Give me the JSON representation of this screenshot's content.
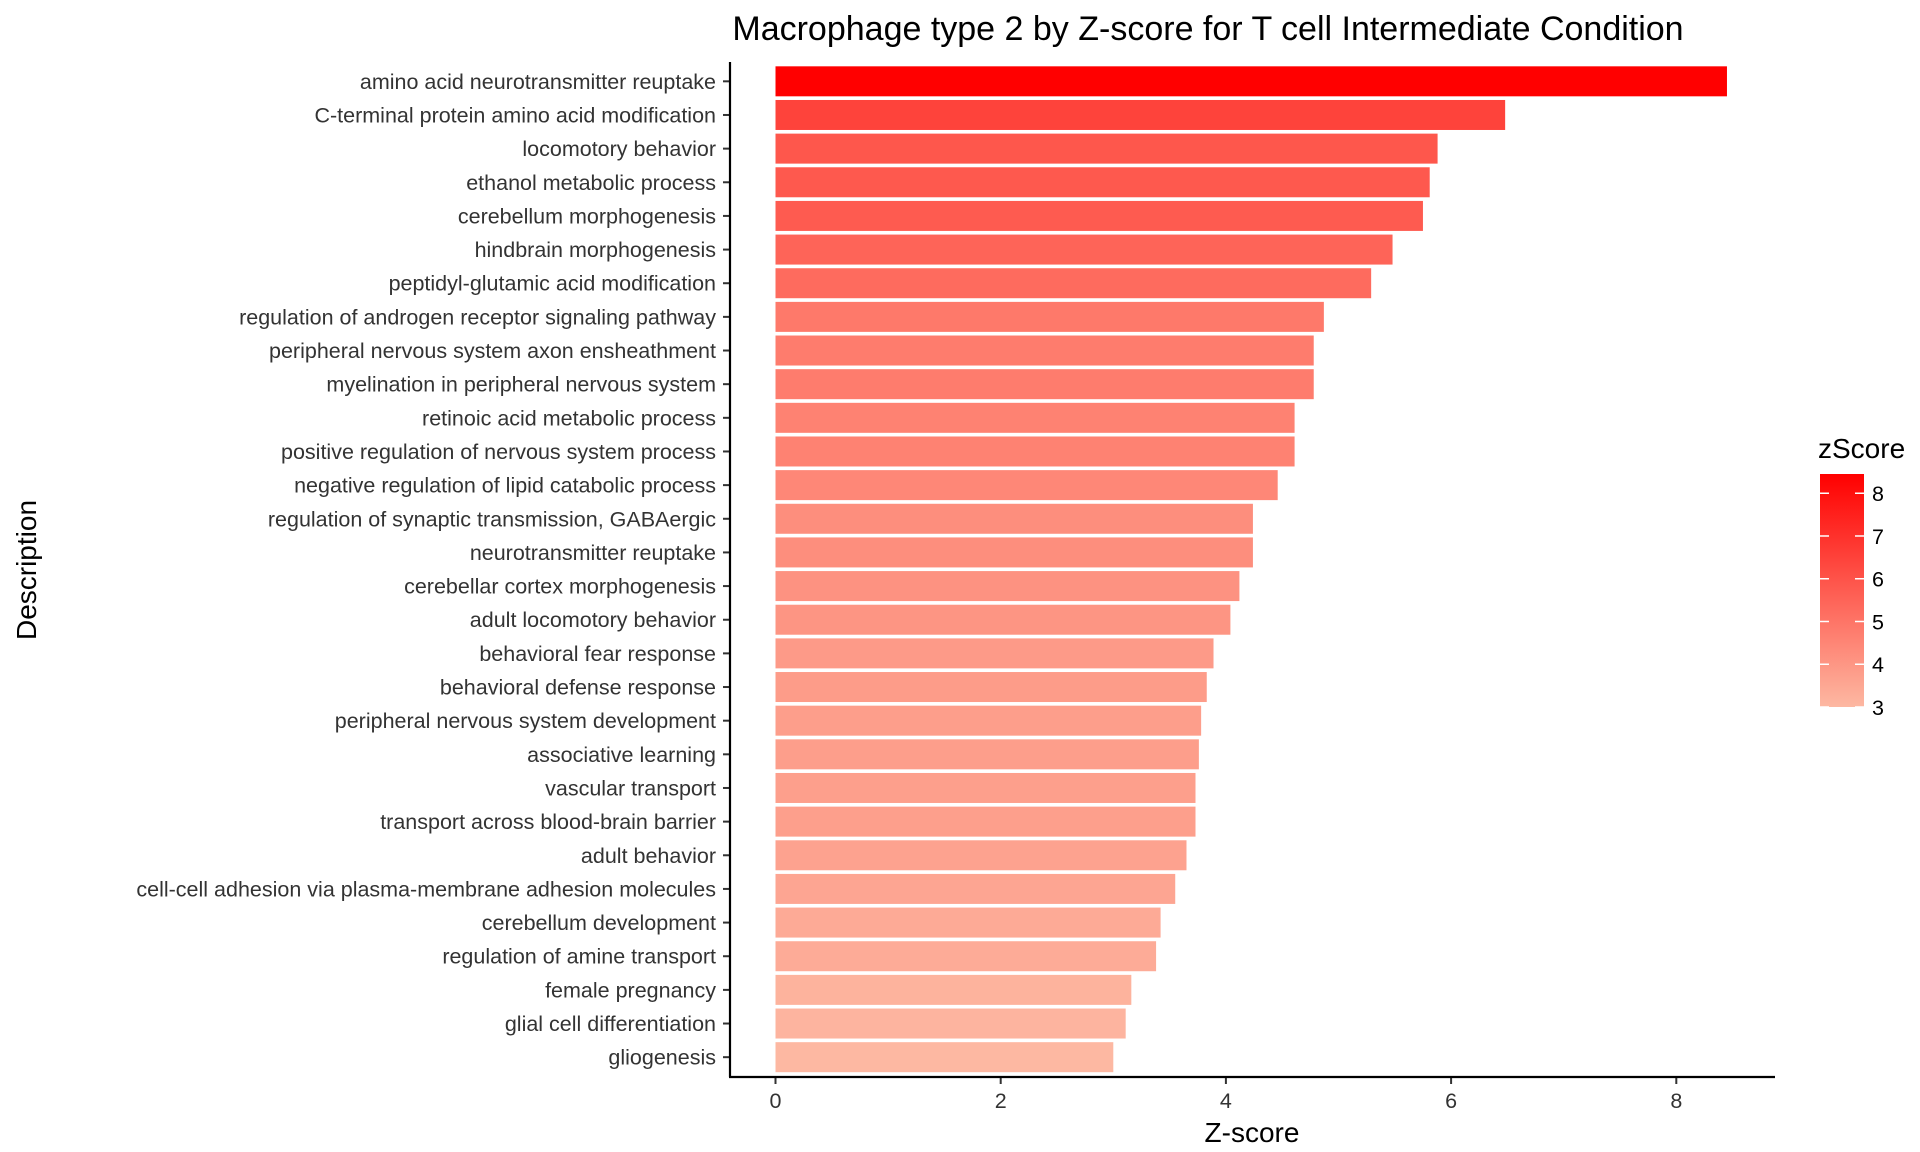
{
  "chart_data": {
    "type": "bar",
    "orientation": "horizontal",
    "title": "Macrophage type 2 by Z-score for T cell Intermediate Condition",
    "xlabel": "Z-score",
    "ylabel": "Description",
    "xlim": [
      -0.4,
      8.85
    ],
    "xticks": [
      0,
      2,
      4,
      6,
      8
    ],
    "grid": false,
    "categories": [
      "amino acid neurotransmitter reuptake",
      "C-terminal protein amino acid modification",
      "locomotory behavior",
      "ethanol metabolic process",
      "cerebellum morphogenesis",
      "hindbrain morphogenesis",
      "peptidyl-glutamic acid modification",
      "regulation of androgen receptor signaling pathway",
      "peripheral nervous system axon ensheathment",
      "myelination in peripheral nervous system",
      "retinoic acid metabolic process",
      "positive regulation of nervous system process",
      "negative regulation of lipid catabolic process",
      "regulation of synaptic transmission, GABAergic",
      "neurotransmitter reuptake",
      "cerebellar cortex morphogenesis",
      "adult locomotory behavior",
      "behavioral fear response",
      "behavioral defense response",
      "peripheral nervous system development",
      "associative learning",
      "vascular transport",
      "transport across blood-brain barrier",
      "adult behavior",
      "cell-cell adhesion via plasma-membrane adhesion molecules",
      "cerebellum development",
      "regulation of amine transport",
      "female pregnancy",
      "glial cell differentiation",
      "gliogenesis"
    ],
    "values": [
      8.45,
      6.48,
      5.88,
      5.81,
      5.75,
      5.48,
      5.29,
      4.87,
      4.78,
      4.78,
      4.61,
      4.61,
      4.46,
      4.24,
      4.24,
      4.12,
      4.04,
      3.89,
      3.83,
      3.78,
      3.76,
      3.73,
      3.73,
      3.65,
      3.55,
      3.42,
      3.38,
      3.16,
      3.11,
      3.0
    ],
    "legend": {
      "title": "zScore",
      "position": "right",
      "ticks": [
        3,
        4,
        5,
        6,
        7,
        8
      ],
      "range": [
        3.0,
        8.45
      ],
      "color_low": "#fdb8a2",
      "color_high": "#ff0000"
    }
  }
}
